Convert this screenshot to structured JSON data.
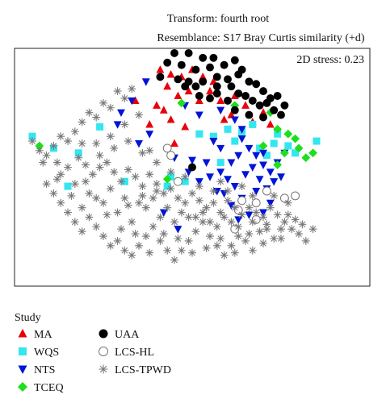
{
  "chart_data": {
    "type": "scatter",
    "title": "Transform: fourth root",
    "subtitle": "Resemblance: S17 Bray Curtis similarity (+d)",
    "stress_label": "2D stress: 0.23",
    "legend_title": "Study",
    "legend_placement": "bottom-left",
    "grid": false,
    "xlim": [
      0,
      100
    ],
    "ylim": [
      0,
      100
    ],
    "series": [
      {
        "name": "MA",
        "color": "#e8000b",
        "marker": "triangle-up",
        "points": [
          [
            41,
            91
          ],
          [
            44,
            89
          ],
          [
            47,
            88
          ],
          [
            50,
            91
          ],
          [
            53,
            88
          ],
          [
            56,
            86
          ],
          [
            43,
            84
          ],
          [
            46,
            80
          ],
          [
            49,
            82
          ],
          [
            52,
            78
          ],
          [
            55,
            82
          ],
          [
            58,
            78
          ],
          [
            62,
            80
          ],
          [
            65,
            76
          ],
          [
            59,
            70
          ],
          [
            61,
            72
          ],
          [
            67,
            69
          ],
          [
            70,
            73
          ],
          [
            72,
            68
          ],
          [
            48,
            67
          ],
          [
            45,
            60
          ],
          [
            44,
            70
          ],
          [
            40,
            76
          ],
          [
            34,
            78
          ],
          [
            38,
            68
          ],
          [
            42,
            74
          ]
        ]
      },
      {
        "name": "WQS",
        "color": "#33e6f0",
        "marker": "square",
        "points": [
          [
            5,
            63
          ],
          [
            11,
            58
          ],
          [
            15,
            42
          ],
          [
            18,
            56
          ],
          [
            24,
            67
          ],
          [
            31,
            44
          ],
          [
            44,
            46
          ],
          [
            48,
            44
          ],
          [
            52,
            64
          ],
          [
            56,
            63
          ],
          [
            60,
            66
          ],
          [
            62,
            61
          ],
          [
            64,
            65
          ],
          [
            67,
            68
          ],
          [
            69,
            58
          ],
          [
            71,
            55
          ],
          [
            73,
            60
          ],
          [
            74,
            64
          ],
          [
            77,
            59
          ],
          [
            79,
            56
          ],
          [
            85,
            61
          ],
          [
            43,
            42
          ],
          [
            58,
            52
          ]
        ]
      },
      {
        "name": "NTS",
        "color": "#0014d6",
        "marker": "triangle-down",
        "points": [
          [
            37,
            86
          ],
          [
            48,
            76
          ],
          [
            52,
            72
          ],
          [
            58,
            74
          ],
          [
            62,
            70
          ],
          [
            64,
            62
          ],
          [
            66,
            58
          ],
          [
            68,
            55
          ],
          [
            70,
            51
          ],
          [
            72,
            48
          ],
          [
            74,
            52
          ],
          [
            76,
            56
          ],
          [
            73,
            44
          ],
          [
            71,
            41
          ],
          [
            69,
            45
          ],
          [
            65,
            47
          ],
          [
            67,
            50
          ],
          [
            63,
            55
          ],
          [
            61,
            52
          ],
          [
            58,
            48
          ],
          [
            60,
            45
          ],
          [
            62,
            42
          ],
          [
            58,
            58
          ],
          [
            56,
            61
          ],
          [
            59,
            39
          ],
          [
            61,
            34
          ],
          [
            64,
            37
          ],
          [
            66,
            30
          ],
          [
            70,
            31
          ],
          [
            72,
            35
          ],
          [
            63,
            28
          ],
          [
            68,
            40
          ],
          [
            30,
            73
          ],
          [
            33,
            78
          ],
          [
            29,
            68
          ],
          [
            35,
            60
          ],
          [
            38,
            64
          ],
          [
            42,
            31
          ],
          [
            46,
            24
          ],
          [
            57,
            40
          ],
          [
            55,
            46
          ],
          [
            54,
            52
          ],
          [
            52,
            44
          ],
          [
            49,
            48
          ],
          [
            50,
            53
          ],
          [
            64,
            66
          ],
          [
            45,
            54
          ],
          [
            70,
            56
          ],
          [
            75,
            46
          ]
        ]
      },
      {
        "name": "TCEQ",
        "color": "#1be01b",
        "marker": "diamond",
        "points": [
          [
            47,
            77
          ],
          [
            62,
            76
          ],
          [
            72,
            73
          ],
          [
            74,
            66
          ],
          [
            77,
            64
          ],
          [
            79,
            62
          ],
          [
            80,
            58
          ],
          [
            82,
            54
          ],
          [
            84,
            56
          ],
          [
            76,
            56
          ],
          [
            74,
            51
          ],
          [
            70,
            59
          ],
          [
            7,
            59
          ],
          [
            43,
            45
          ]
        ]
      },
      {
        "name": "UAA",
        "color": "#000000",
        "marker": "circle",
        "points": [
          [
            45,
            98
          ],
          [
            49,
            98
          ],
          [
            53,
            96
          ],
          [
            56,
            96
          ],
          [
            59,
            93
          ],
          [
            62,
            95
          ],
          [
            64,
            91
          ],
          [
            43,
            94
          ],
          [
            47,
            93
          ],
          [
            51,
            91
          ],
          [
            55,
            92
          ],
          [
            57,
            88
          ],
          [
            60,
            87
          ],
          [
            63,
            89
          ],
          [
            66,
            86
          ],
          [
            68,
            85
          ],
          [
            70,
            82
          ],
          [
            72,
            79
          ],
          [
            74,
            80
          ],
          [
            53,
            86
          ],
          [
            51,
            84
          ],
          [
            49,
            86
          ],
          [
            57,
            84
          ],
          [
            61,
            84
          ],
          [
            63,
            81
          ],
          [
            65,
            80
          ],
          [
            67,
            78
          ],
          [
            69,
            76
          ],
          [
            71,
            77
          ],
          [
            73,
            74
          ],
          [
            75,
            72
          ],
          [
            76,
            76
          ],
          [
            52,
            80
          ],
          [
            55,
            79
          ],
          [
            57,
            81
          ],
          [
            48,
            84
          ],
          [
            41,
            88
          ],
          [
            46,
            87
          ],
          [
            60,
            78
          ],
          [
            62,
            74
          ],
          [
            66,
            72
          ],
          [
            70,
            71
          ],
          [
            50,
            50
          ]
        ]
      },
      {
        "name": "LCS-HL",
        "color": "#777777",
        "marker": "open-circle",
        "points": [
          [
            43,
            58
          ],
          [
            44,
            55
          ],
          [
            46,
            44
          ],
          [
            63,
            32
          ],
          [
            64,
            36
          ],
          [
            68,
            35
          ],
          [
            71,
            40
          ],
          [
            76,
            37
          ],
          [
            79,
            38
          ],
          [
            62,
            24
          ],
          [
            68,
            28
          ]
        ]
      },
      {
        "name": "LCS-TPWD",
        "color": "#7a7a7a",
        "marker": "asterisk",
        "points": [
          [
            33,
            83
          ],
          [
            31,
            79
          ],
          [
            29,
            82
          ],
          [
            27,
            75
          ],
          [
            25,
            77
          ],
          [
            23,
            71
          ],
          [
            21,
            73
          ],
          [
            19,
            69
          ],
          [
            17,
            65
          ],
          [
            15,
            61
          ],
          [
            13,
            63
          ],
          [
            11,
            59
          ],
          [
            9,
            55
          ],
          [
            7,
            57
          ],
          [
            5,
            61
          ],
          [
            12,
            52
          ],
          [
            15,
            50
          ],
          [
            18,
            54
          ],
          [
            20,
            51
          ],
          [
            22,
            47
          ],
          [
            24,
            50
          ],
          [
            26,
            52
          ],
          [
            28,
            48
          ],
          [
            30,
            44
          ],
          [
            32,
            49
          ],
          [
            34,
            46
          ],
          [
            36,
            42
          ],
          [
            38,
            47
          ],
          [
            40,
            43
          ],
          [
            42,
            39
          ],
          [
            44,
            41
          ],
          [
            46,
            37
          ],
          [
            48,
            35
          ],
          [
            50,
            39
          ],
          [
            52,
            36
          ],
          [
            54,
            33
          ],
          [
            56,
            35
          ],
          [
            58,
            31
          ],
          [
            60,
            36
          ],
          [
            62,
            33
          ],
          [
            64,
            30
          ],
          [
            66,
            33
          ],
          [
            68,
            31
          ],
          [
            70,
            29
          ],
          [
            72,
            33
          ],
          [
            74,
            30
          ],
          [
            76,
            27
          ],
          [
            78,
            24
          ],
          [
            80,
            22
          ],
          [
            82,
            19
          ],
          [
            9,
            43
          ],
          [
            11,
            39
          ],
          [
            13,
            35
          ],
          [
            15,
            31
          ],
          [
            17,
            27
          ],
          [
            19,
            23
          ],
          [
            21,
            29
          ],
          [
            23,
            25
          ],
          [
            25,
            21
          ],
          [
            27,
            17
          ],
          [
            29,
            19
          ],
          [
            31,
            15
          ],
          [
            33,
            13
          ],
          [
            35,
            17
          ],
          [
            37,
            21
          ],
          [
            39,
            25
          ],
          [
            41,
            19
          ],
          [
            43,
            15
          ],
          [
            45,
            11
          ],
          [
            47,
            15
          ],
          [
            49,
            19
          ],
          [
            51,
            23
          ],
          [
            53,
            27
          ],
          [
            55,
            21
          ],
          [
            57,
            17
          ],
          [
            59,
            13
          ],
          [
            61,
            17
          ],
          [
            63,
            21
          ],
          [
            65,
            19
          ],
          [
            67,
            15
          ],
          [
            69,
            23
          ],
          [
            71,
            26
          ],
          [
            73,
            20
          ],
          [
            75,
            24
          ],
          [
            77,
            30
          ],
          [
            79,
            28
          ],
          [
            81,
            26
          ],
          [
            13,
            47
          ],
          [
            17,
            43
          ],
          [
            21,
            39
          ],
          [
            25,
            35
          ],
          [
            29,
            31
          ],
          [
            33,
            27
          ],
          [
            37,
            33
          ],
          [
            41,
            29
          ],
          [
            45,
            27
          ],
          [
            49,
            29
          ],
          [
            53,
            31
          ],
          [
            57,
            25
          ],
          [
            61,
            27
          ],
          [
            19,
            33
          ],
          [
            23,
            37
          ],
          [
            27,
            41
          ],
          [
            31,
            37
          ],
          [
            35,
            35
          ],
          [
            39,
            37
          ],
          [
            43,
            33
          ],
          [
            47,
            31
          ],
          [
            51,
            29
          ],
          [
            55,
            27
          ],
          [
            59,
            29
          ],
          [
            63,
            25
          ],
          [
            67,
            27
          ],
          [
            71,
            24
          ],
          [
            75,
            20
          ],
          [
            31,
            68
          ],
          [
            35,
            72
          ],
          [
            27,
            63
          ],
          [
            23,
            60
          ],
          [
            19,
            60
          ],
          [
            24,
            55
          ],
          [
            28,
            58
          ],
          [
            32,
            61
          ],
          [
            36,
            56
          ],
          [
            40,
            52
          ],
          [
            38,
            57
          ],
          [
            8,
            52
          ],
          [
            26,
            30
          ],
          [
            30,
            24
          ],
          [
            34,
            22
          ],
          [
            38,
            14
          ],
          [
            42,
            22
          ],
          [
            46,
            20
          ],
          [
            50,
            14
          ],
          [
            54,
            16
          ],
          [
            58,
            20
          ],
          [
            62,
            14
          ],
          [
            66,
            22
          ],
          [
            70,
            18
          ],
          [
            58,
            44
          ],
          [
            56,
            40
          ],
          [
            52,
            42
          ],
          [
            48,
            46
          ],
          [
            44,
            48
          ],
          [
            40,
            40
          ],
          [
            36,
            38
          ],
          [
            32,
            34
          ],
          [
            12,
            45
          ],
          [
            16,
            38
          ],
          [
            20,
            44
          ],
          [
            84,
            24
          ],
          [
            77,
            35
          ],
          [
            73,
            38
          ],
          [
            67,
            38
          ],
          [
            64,
            42
          ],
          [
            60,
            40
          ]
        ]
      }
    ]
  }
}
